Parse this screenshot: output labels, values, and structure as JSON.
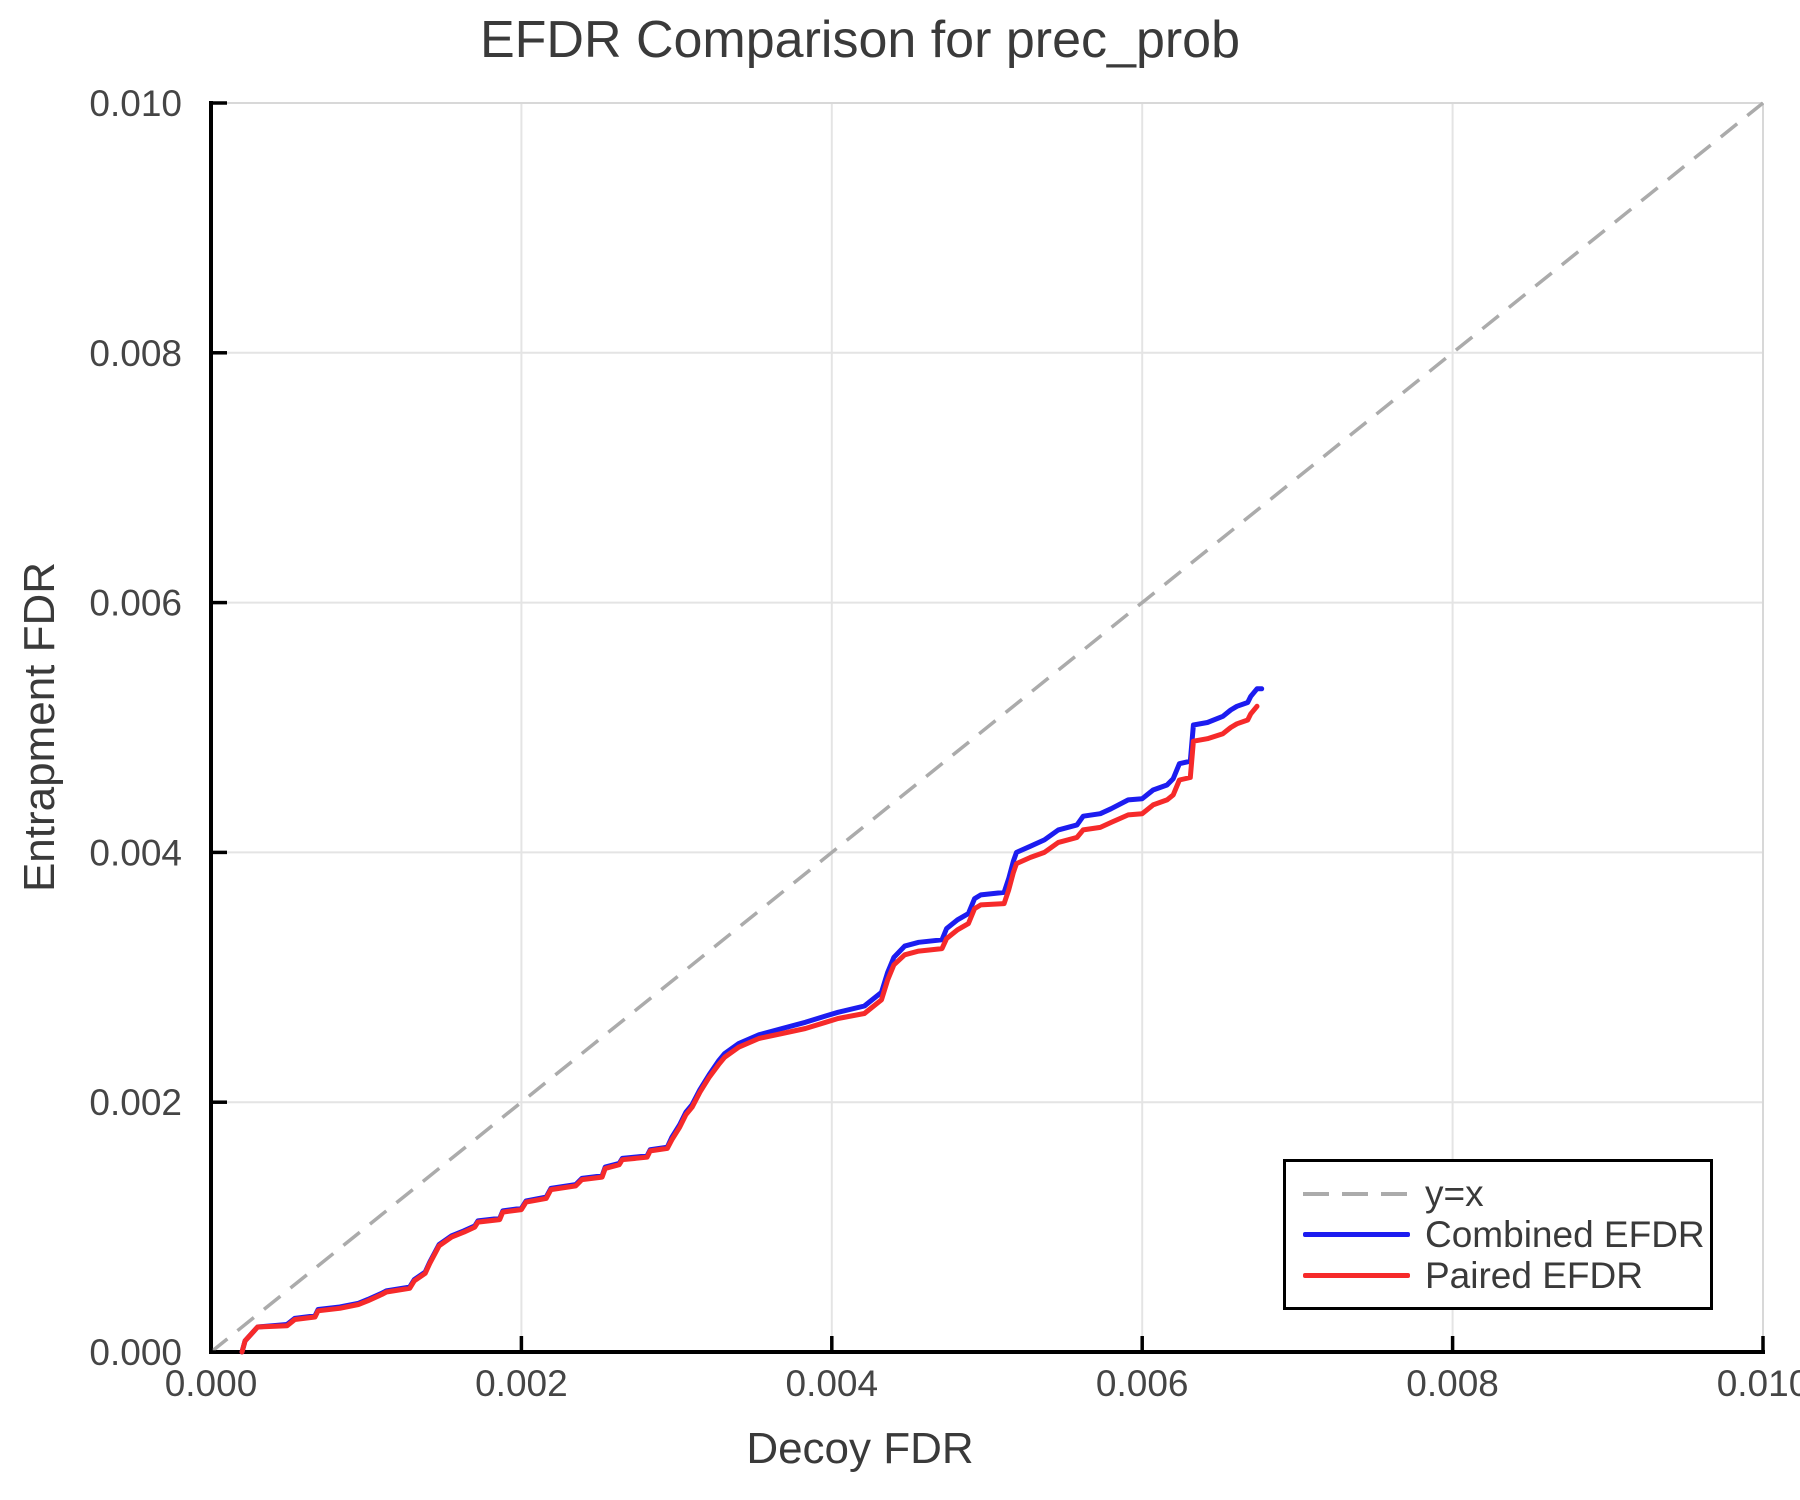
{
  "chart_data": {
    "type": "line",
    "title": "EFDR Comparison for prec_prob",
    "xlabel": "Decoy FDR",
    "ylabel": "Entrapment FDR",
    "xlim": [
      0,
      0.01
    ],
    "ylim": [
      0,
      0.01
    ],
    "xticks": [
      0,
      0.002,
      0.004,
      0.006,
      0.008,
      0.01
    ],
    "yticks": [
      0,
      0.002,
      0.004,
      0.006,
      0.008,
      0.01
    ],
    "tick_labels": {
      "x": [
        "0.000",
        "0.002",
        "0.004",
        "0.006",
        "0.008",
        "0.010"
      ],
      "y": [
        "0.000",
        "0.002",
        "0.004",
        "0.006",
        "0.008",
        "0.010"
      ]
    },
    "grid": true,
    "legend_position": "lower right",
    "reference_line": {
      "label": "y=x",
      "style": "dashed",
      "color": "#ababab",
      "from": [
        0,
        0
      ],
      "to": [
        0.01,
        0.01
      ]
    },
    "style": {
      "grid_color": "#e4e4e4",
      "frame_light_color": "#d8d8d8",
      "axis_color": "#000000",
      "text_color": "#3a3a3a",
      "tick_text_color": "#454545"
    },
    "series": [
      {
        "name": "Combined EFDR",
        "color": "#1c1cf0",
        "points": [
          [
            0.0002,
            0.0
          ],
          [
            0.00022,
            9e-05
          ],
          [
            0.0003,
            0.0002
          ],
          [
            0.00049,
            0.00022
          ],
          [
            0.00054,
            0.00027
          ],
          [
            0.00067,
            0.00029
          ],
          [
            0.00069,
            0.00034
          ],
          [
            0.00083,
            0.00036
          ],
          [
            0.00095,
            0.00039
          ],
          [
            0.00101,
            0.00042
          ],
          [
            0.0011,
            0.00047
          ],
          [
            0.00113,
            0.00049
          ],
          [
            0.00128,
            0.00052
          ],
          [
            0.00131,
            0.00058
          ],
          [
            0.00138,
            0.00064
          ],
          [
            0.00141,
            0.00072
          ],
          [
            0.00147,
            0.00086
          ],
          [
            0.00155,
            0.00093
          ],
          [
            0.00163,
            0.00097
          ],
          [
            0.0017,
            0.00101
          ],
          [
            0.00172,
            0.00105
          ],
          [
            0.00186,
            0.00107
          ],
          [
            0.00188,
            0.00113
          ],
          [
            0.002,
            0.00115
          ],
          [
            0.00203,
            0.00121
          ],
          [
            0.00216,
            0.00124
          ],
          [
            0.00219,
            0.00131
          ],
          [
            0.00235,
            0.00134
          ],
          [
            0.00239,
            0.00139
          ],
          [
            0.00252,
            0.00141
          ],
          [
            0.00254,
            0.00148
          ],
          [
            0.00263,
            0.00151
          ],
          [
            0.00265,
            0.00155
          ],
          [
            0.00281,
            0.00157
          ],
          [
            0.00283,
            0.00162
          ],
          [
            0.00294,
            0.00164
          ],
          [
            0.00297,
            0.00172
          ],
          [
            0.00302,
            0.00182
          ],
          [
            0.00306,
            0.00192
          ],
          [
            0.0031,
            0.00198
          ],
          [
            0.00315,
            0.0021
          ],
          [
            0.00321,
            0.00222
          ],
          [
            0.00327,
            0.00233
          ],
          [
            0.00331,
            0.00239
          ],
          [
            0.0034,
            0.00247
          ],
          [
            0.00353,
            0.00254
          ],
          [
            0.00368,
            0.00259
          ],
          [
            0.00383,
            0.00264
          ],
          [
            0.00396,
            0.00269
          ],
          [
            0.00404,
            0.00272
          ],
          [
            0.00421,
            0.00277
          ],
          [
            0.00432,
            0.00288
          ],
          [
            0.00436,
            0.00304
          ],
          [
            0.0044,
            0.00316
          ],
          [
            0.00447,
            0.00325
          ],
          [
            0.00456,
            0.00328
          ],
          [
            0.00471,
            0.0033
          ],
          [
            0.00474,
            0.00339
          ],
          [
            0.00481,
            0.00346
          ],
          [
            0.00488,
            0.00351
          ],
          [
            0.00492,
            0.00363
          ],
          [
            0.00496,
            0.00366
          ],
          [
            0.00511,
            0.00368
          ],
          [
            0.00514,
            0.00379
          ],
          [
            0.00517,
            0.00393
          ],
          [
            0.00519,
            0.004
          ],
          [
            0.00528,
            0.00405
          ],
          [
            0.00537,
            0.0041
          ],
          [
            0.00546,
            0.00418
          ],
          [
            0.00558,
            0.00422
          ],
          [
            0.00562,
            0.00429
          ],
          [
            0.00573,
            0.00431
          ],
          [
            0.0058,
            0.00435
          ],
          [
            0.00591,
            0.00442
          ],
          [
            0.006,
            0.00443
          ],
          [
            0.00607,
            0.0045
          ],
          [
            0.00616,
            0.00454
          ],
          [
            0.0062,
            0.00459
          ],
          [
            0.00624,
            0.00471
          ],
          [
            0.00631,
            0.00473
          ],
          [
            0.00633,
            0.00502
          ],
          [
            0.00642,
            0.00504
          ],
          [
            0.00652,
            0.00509
          ],
          [
            0.00657,
            0.00514
          ],
          [
            0.00661,
            0.00517
          ],
          [
            0.00668,
            0.0052
          ],
          [
            0.0067,
            0.00525
          ],
          [
            0.00674,
            0.00531
          ],
          [
            0.00677,
            0.00531
          ]
        ]
      },
      {
        "name": "Paired EFDR",
        "color": "#f62a2a",
        "points": [
          [
            0.0002,
            0.0
          ],
          [
            0.00022,
            9e-05
          ],
          [
            0.0003,
            0.0002
          ],
          [
            0.00049,
            0.00021
          ],
          [
            0.00054,
            0.00026
          ],
          [
            0.00067,
            0.00028
          ],
          [
            0.00069,
            0.00033
          ],
          [
            0.00083,
            0.00035
          ],
          [
            0.00095,
            0.00038
          ],
          [
            0.00101,
            0.00041
          ],
          [
            0.0011,
            0.00046
          ],
          [
            0.00113,
            0.00048
          ],
          [
            0.00128,
            0.00051
          ],
          [
            0.00131,
            0.00057
          ],
          [
            0.00138,
            0.00063
          ],
          [
            0.00141,
            0.00071
          ],
          [
            0.00147,
            0.00085
          ],
          [
            0.00155,
            0.00092
          ],
          [
            0.00163,
            0.00096
          ],
          [
            0.0017,
            0.001
          ],
          [
            0.00172,
            0.00104
          ],
          [
            0.00186,
            0.00106
          ],
          [
            0.00188,
            0.00112
          ],
          [
            0.002,
            0.00114
          ],
          [
            0.00203,
            0.0012
          ],
          [
            0.00216,
            0.00123
          ],
          [
            0.00219,
            0.0013
          ],
          [
            0.00235,
            0.00133
          ],
          [
            0.00239,
            0.00138
          ],
          [
            0.00252,
            0.0014
          ],
          [
            0.00254,
            0.00147
          ],
          [
            0.00263,
            0.0015
          ],
          [
            0.00265,
            0.00154
          ],
          [
            0.00281,
            0.00156
          ],
          [
            0.00283,
            0.00161
          ],
          [
            0.00294,
            0.00163
          ],
          [
            0.00297,
            0.0017
          ],
          [
            0.00302,
            0.0018
          ],
          [
            0.00306,
            0.0019
          ],
          [
            0.0031,
            0.00196
          ],
          [
            0.00315,
            0.00208
          ],
          [
            0.00321,
            0.0022
          ],
          [
            0.00327,
            0.0023
          ],
          [
            0.00331,
            0.00236
          ],
          [
            0.0034,
            0.00244
          ],
          [
            0.00353,
            0.00251
          ],
          [
            0.00368,
            0.00255
          ],
          [
            0.00383,
            0.00259
          ],
          [
            0.00396,
            0.00264
          ],
          [
            0.00404,
            0.00267
          ],
          [
            0.00421,
            0.00271
          ],
          [
            0.00432,
            0.00282
          ],
          [
            0.00436,
            0.00298
          ],
          [
            0.0044,
            0.0031
          ],
          [
            0.00447,
            0.00318
          ],
          [
            0.00456,
            0.00321
          ],
          [
            0.00471,
            0.00323
          ],
          [
            0.00474,
            0.00331
          ],
          [
            0.00481,
            0.00338
          ],
          [
            0.00488,
            0.00343
          ],
          [
            0.00492,
            0.00355
          ],
          [
            0.00496,
            0.00358
          ],
          [
            0.00511,
            0.00359
          ],
          [
            0.00514,
            0.0037
          ],
          [
            0.00517,
            0.00384
          ],
          [
            0.00519,
            0.00391
          ],
          [
            0.00528,
            0.00396
          ],
          [
            0.00537,
            0.004
          ],
          [
            0.00546,
            0.00408
          ],
          [
            0.00558,
            0.00412
          ],
          [
            0.00562,
            0.00418
          ],
          [
            0.00573,
            0.0042
          ],
          [
            0.0058,
            0.00424
          ],
          [
            0.00591,
            0.0043
          ],
          [
            0.006,
            0.00431
          ],
          [
            0.00607,
            0.00438
          ],
          [
            0.00616,
            0.00442
          ],
          [
            0.0062,
            0.00446
          ],
          [
            0.00624,
            0.00458
          ],
          [
            0.00631,
            0.0046
          ],
          [
            0.00633,
            0.00489
          ],
          [
            0.00642,
            0.00491
          ],
          [
            0.00652,
            0.00495
          ],
          [
            0.00657,
            0.005
          ],
          [
            0.00661,
            0.00503
          ],
          [
            0.00668,
            0.00506
          ],
          [
            0.0067,
            0.00511
          ],
          [
            0.00674,
            0.00517
          ]
        ]
      }
    ],
    "legend": {
      "items": [
        {
          "label": "y=x",
          "style": "dashed",
          "color": "#ababab"
        },
        {
          "label": "Combined EFDR",
          "style": "solid",
          "color": "#1c1cf0"
        },
        {
          "label": "Paired EFDR",
          "style": "solid",
          "color": "#f62a2a"
        }
      ]
    }
  }
}
